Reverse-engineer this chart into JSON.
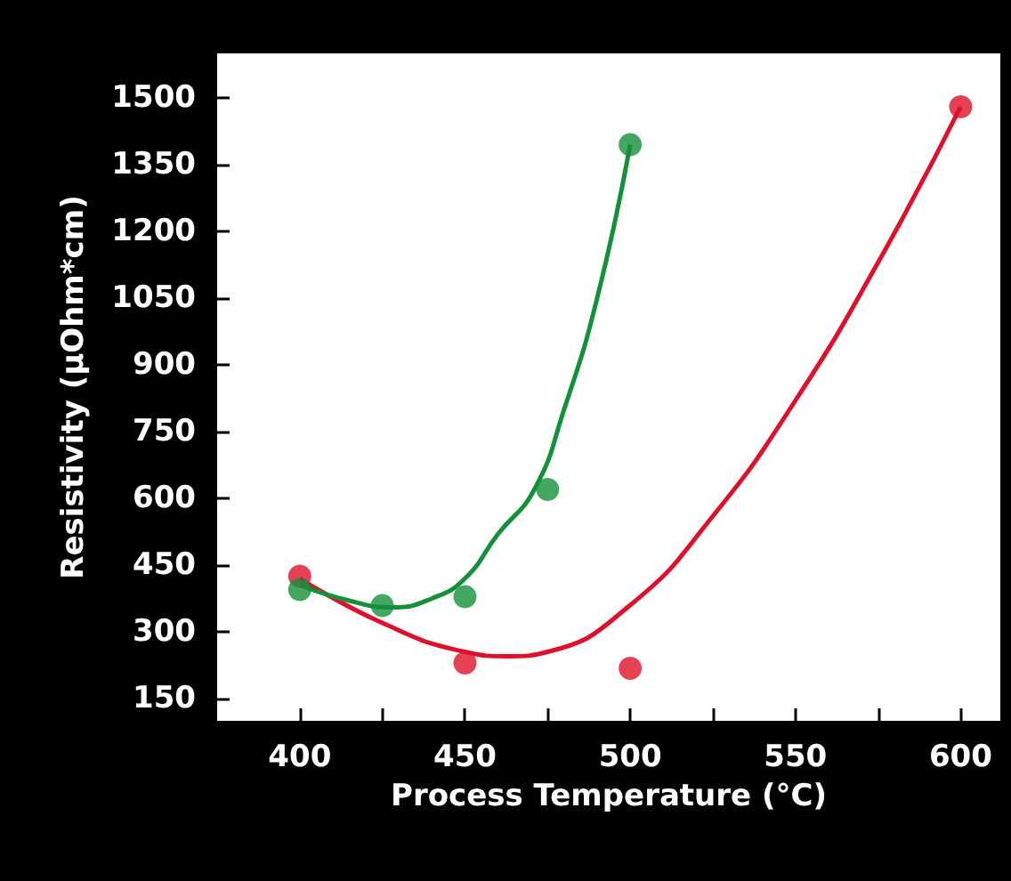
{
  "chart_data": {
    "type": "scatter",
    "xlabel": "Process Temperature (°C)",
    "ylabel": "Resistivity (µOhm*cm)",
    "xlim": [
      375,
      612
    ],
    "ylim": [
      100,
      1600
    ],
    "xticks": [
      400,
      {
        "value": 425,
        "label": null
      },
      450,
      {
        "value": 475,
        "label": null
      },
      500,
      {
        "value": 525,
        "label": null
      },
      550,
      {
        "value": 575,
        "label": null
      },
      600
    ],
    "yticks": [
      150,
      300,
      450,
      600,
      750,
      900,
      1050,
      1200,
      1350,
      1500
    ],
    "grid": false,
    "marker": "circle",
    "series": [
      {
        "type": "line",
        "color": "#e0102a",
        "marker": "none",
        "x": [
          400,
          425,
          450,
          463,
          475,
          500,
          525,
          550,
          575,
          600
        ],
        "values": [
          420,
          320,
          255,
          245,
          255,
          360,
          560,
          820,
          1130,
          1480
        ]
      },
      {
        "type": "line",
        "color": "#12913a",
        "marker": "none",
        "x": [
          400,
          415,
          428,
          440,
          450,
          460,
          471,
          480,
          490,
          500
        ],
        "values": [
          405,
          370,
          355,
          375,
          420,
          520,
          620,
          800,
          1050,
          1395
        ]
      },
      {
        "color": "#e0102a",
        "x": [
          400,
          450,
          500,
          600
        ],
        "values": [
          425,
          230,
          218,
          1480
        ]
      },
      {
        "color": "#12913a",
        "x": [
          400,
          425,
          450,
          475,
          500
        ],
        "values": [
          395,
          359,
          379,
          620,
          1395
        ]
      }
    ]
  }
}
